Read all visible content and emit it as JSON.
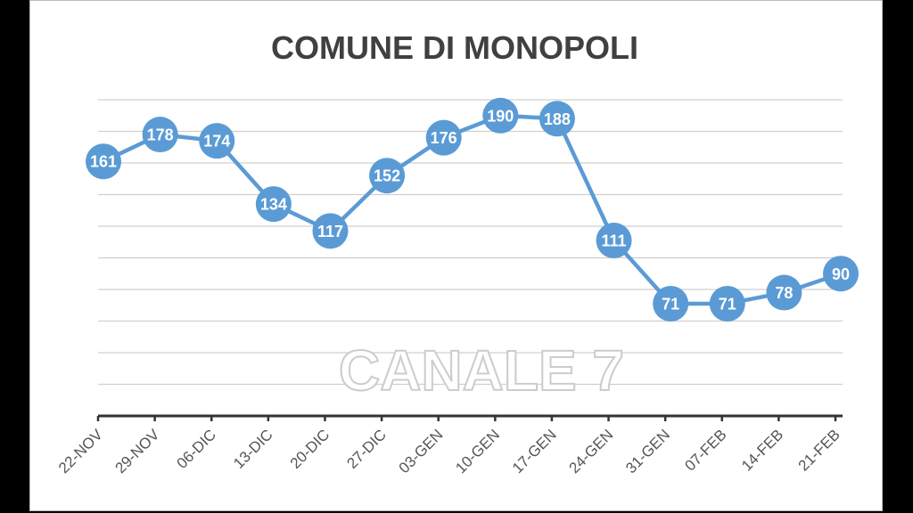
{
  "chart_data": {
    "type": "line",
    "title": "COMUNE DI MONOPOLI",
    "categories": [
      "22-NOV",
      "29-NOV",
      "06-DIC",
      "13-DIC",
      "20-DIC",
      "27-DIC",
      "03-GEN",
      "10-GEN",
      "17-GEN",
      "24-GEN",
      "31-GEN",
      "07-FEB",
      "14-FEB",
      "21-FEB"
    ],
    "values": [
      161,
      178,
      174,
      134,
      117,
      152,
      176,
      190,
      188,
      111,
      71,
      71,
      78,
      90
    ],
    "ylim": [
      0,
      200
    ],
    "y_gridline_step": 20,
    "y_tick_labels_shown": false,
    "grid": true,
    "legend": "none",
    "data_labels": true,
    "line_color": "#5b9bd5",
    "label_color": "#ffffff"
  },
  "watermark": "CANALE 7"
}
